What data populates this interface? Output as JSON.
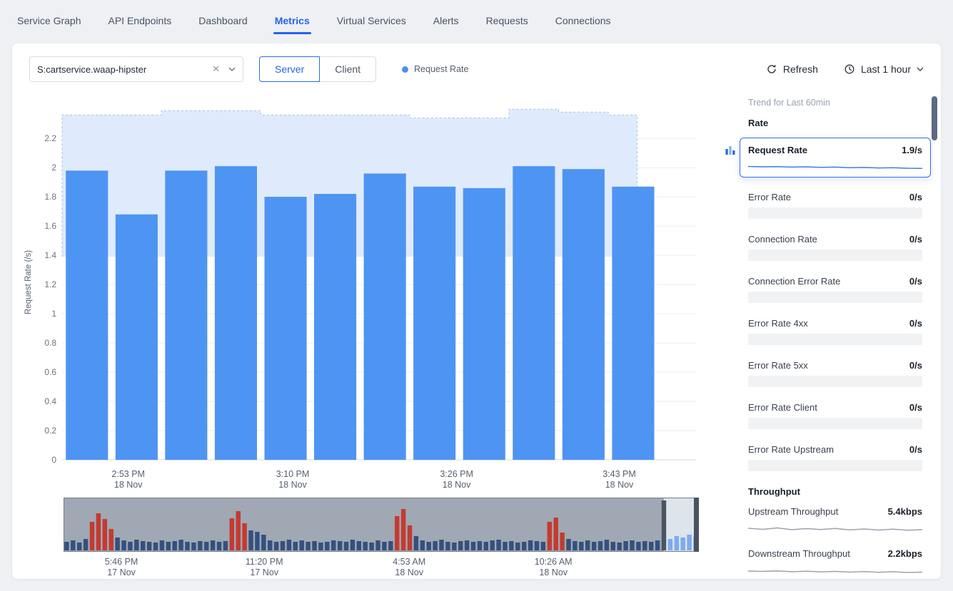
{
  "nav": {
    "tabs": [
      {
        "label": "Service Graph",
        "active": false
      },
      {
        "label": "API Endpoints",
        "active": false
      },
      {
        "label": "Dashboard",
        "active": false
      },
      {
        "label": "Metrics",
        "active": true
      },
      {
        "label": "Virtual Services",
        "active": false
      },
      {
        "label": "Alerts",
        "active": false
      },
      {
        "label": "Requests",
        "active": false
      },
      {
        "label": "Connections",
        "active": false
      }
    ],
    "active_color": "#2463eb"
  },
  "toolbar": {
    "service_select_value": "S:cartservice.waap-hipster",
    "modes": [
      {
        "label": "Server",
        "selected": true
      },
      {
        "label": "Client",
        "selected": false
      }
    ],
    "legend_label": "Request Rate",
    "legend_color": "#4a90f4",
    "refresh_label": "Refresh",
    "time_range": "Last 1 hour"
  },
  "chart_data": [
    {
      "type": "bar",
      "name": "request-rate-over-time",
      "title": "Request Rate",
      "xlabel": "",
      "ylabel": "Request Rate (/s)",
      "yticks": [
        0,
        0.2,
        0.4,
        0.6,
        0.8,
        1,
        1.2,
        1.4,
        1.6,
        1.8,
        2,
        2.2
      ],
      "ylim": [
        0,
        2.44
      ],
      "values": [
        1.98,
        1.68,
        1.98,
        2.01,
        1.8,
        1.82,
        1.96,
        1.87,
        1.86,
        2.01,
        1.99,
        1.87
      ],
      "bar_color": "#4e94f3",
      "band": {
        "bottom": 1.39,
        "tops": [
          2.36,
          2.36,
          2.39,
          2.39,
          2.36,
          2.36,
          2.36,
          2.34,
          2.34,
          2.4,
          2.38,
          2.36
        ],
        "end_fraction": 0.965,
        "color": "#d9e7fc"
      },
      "x_ticks": [
        {
          "time": "2:53 PM",
          "date": "18 Nov",
          "pos": 0.111
        },
        {
          "time": "3:10 PM",
          "date": "18 Nov",
          "pos": 0.387
        },
        {
          "time": "3:26 PM",
          "date": "18 Nov",
          "pos": 0.662
        },
        {
          "time": "3:43 PM",
          "date": "18 Nov",
          "pos": 0.935
        }
      ],
      "grid": true,
      "legend": "Request Rate"
    },
    {
      "type": "bar",
      "name": "timeline-overview-brush",
      "values": [
        12,
        14,
        11,
        16,
        40,
        52,
        44,
        30,
        18,
        14,
        12,
        15,
        13,
        12,
        11,
        14,
        12,
        13,
        15,
        12,
        11,
        13,
        12,
        14,
        12,
        13,
        45,
        55,
        38,
        28,
        26,
        22,
        14,
        12,
        13,
        15,
        12,
        14,
        12,
        13,
        11,
        12,
        14,
        13,
        12,
        15,
        13,
        12,
        11,
        14,
        12,
        13,
        48,
        58,
        35,
        20,
        14,
        12,
        13,
        15,
        12,
        11,
        13,
        14,
        12,
        13,
        12,
        14,
        15,
        12,
        13,
        11,
        12,
        14,
        13,
        12,
        40,
        46,
        25,
        16,
        13,
        12,
        14,
        12,
        13,
        15,
        12,
        11,
        13,
        14,
        12,
        13,
        12,
        14,
        70,
        16,
        20,
        18,
        22,
        19
      ],
      "red_indices": [
        4,
        5,
        6,
        7,
        26,
        27,
        28,
        52,
        53,
        54,
        76,
        77,
        78
      ],
      "dark_indices": [
        94
      ],
      "selected_from": 95,
      "selection_start_fraction": 0.945,
      "colors": {
        "normal": "#35507f",
        "error": "#c43a30",
        "selected": "#7cabee",
        "dark": "#4a5360",
        "background": "#9fa8b3"
      },
      "x_ticks": [
        {
          "time": "5:46 PM",
          "date": "17 Nov",
          "pos": 0.091
        },
        {
          "time": "11:20 PM",
          "date": "17 Nov",
          "pos": 0.316
        },
        {
          "time": "4:53 AM",
          "date": "18 Nov",
          "pos": 0.544
        },
        {
          "time": "10:26 AM",
          "date": "18 Nov",
          "pos": 0.771
        }
      ]
    }
  ],
  "sidebar": {
    "trend_title": "Trend for Last 60min",
    "sections": [
      {
        "title": "Rate",
        "items": [
          {
            "label": "Request Rate",
            "value": "1.9/s",
            "selected": true,
            "spark": {
              "type": "line",
              "color": "#3b7df0",
              "values": [
                8.5,
                9,
                8.7,
                9.4,
                9,
                9.8,
                9.4,
                10.2,
                9.9,
                10.6,
                10.3,
                11,
                11.2
              ]
            }
          },
          {
            "label": "Error Rate",
            "value": "0/s",
            "selected": false,
            "spark": {
              "type": "flat"
            }
          },
          {
            "label": "Connection Rate",
            "value": "0/s",
            "selected": false,
            "spark": {
              "type": "flat"
            }
          },
          {
            "label": "Connection Error Rate",
            "value": "0/s",
            "selected": false,
            "spark": {
              "type": "flat"
            }
          },
          {
            "label": "Error Rate 4xx",
            "value": "0/s",
            "selected": false,
            "spark": {
              "type": "flat"
            }
          },
          {
            "label": "Error Rate 5xx",
            "value": "0/s",
            "selected": false,
            "spark": {
              "type": "flat"
            }
          },
          {
            "label": "Error Rate Client",
            "value": "0/s",
            "selected": false,
            "spark": {
              "type": "flat"
            }
          },
          {
            "label": "Error Rate Upstream",
            "value": "0/s",
            "selected": false,
            "spark": {
              "type": "flat"
            }
          }
        ]
      },
      {
        "title": "Throughput",
        "items": [
          {
            "label": "Upstream Throughput",
            "value": "5.4kbps",
            "selected": false,
            "spark": {
              "type": "line",
              "color": "#9aa3ad",
              "values": [
                9,
                10.5,
                8.5,
                11,
                9.5,
                10.8,
                9.2,
                11.2,
                10,
                11.5,
                10.2,
                11.8,
                11
              ]
            }
          },
          {
            "label": "Downstream Throughput",
            "value": "2.2kbps",
            "selected": false,
            "spark": {
              "type": "line",
              "color": "#9aa3ad",
              "values": [
                10,
                10.5,
                9.8,
                11,
                10.2,
                11.2,
                10.5,
                11.5,
                10.8,
                11.8,
                11,
                12,
                11.5
              ]
            }
          }
        ]
      }
    ]
  }
}
